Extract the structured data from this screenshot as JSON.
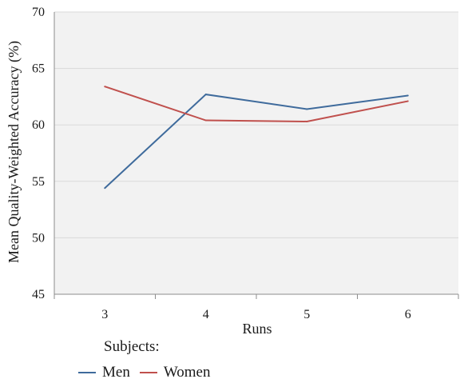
{
  "chart_data": {
    "type": "line",
    "title": "",
    "xlabel": "Runs",
    "ylabel": "Mean Quality-Weighted Accuracy (%)",
    "x": [
      3,
      4,
      5,
      6
    ],
    "xticks": [
      "3",
      "4",
      "5",
      "6"
    ],
    "ylim": [
      45,
      70
    ],
    "yticks": [
      "45",
      "50",
      "55",
      "60",
      "65",
      "70"
    ],
    "grid": true,
    "legend_title": "Subjects:",
    "legend_position": "bottom-left",
    "series": [
      {
        "name": "Men",
        "color": "#3f6b9c",
        "values": [
          54.4,
          62.7,
          61.4,
          62.6
        ]
      },
      {
        "name": "Women",
        "color": "#c0504d",
        "values": [
          63.4,
          60.4,
          60.3,
          62.1
        ]
      }
    ]
  }
}
